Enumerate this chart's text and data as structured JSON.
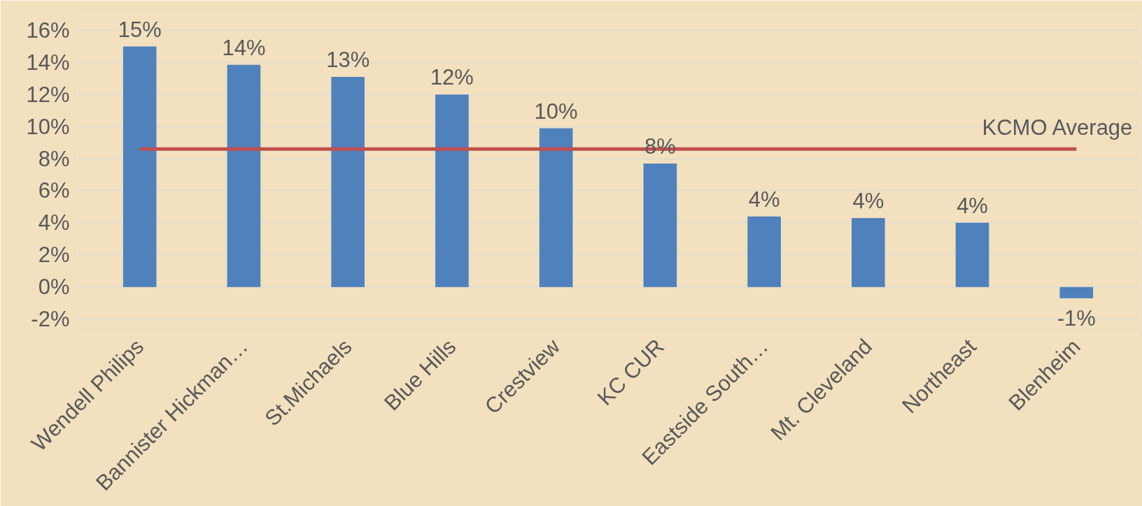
{
  "chart_data": {
    "type": "bar",
    "categories": [
      "Wendell Philips",
      "Bannister Hickman…",
      "St.Michaels",
      "Blue Hills",
      "Crestview",
      "KC CUR",
      "Eastside South…",
      "Mt. Cleveland",
      "Northeast",
      "Blenheim"
    ],
    "values": [
      15,
      13.85,
      13.1,
      12,
      9.9,
      7.7,
      4.4,
      4.3,
      4.0,
      -0.7
    ],
    "value_labels": [
      "15%",
      "14%",
      "13%",
      "12%",
      "10%",
      "8%",
      "4%",
      "4%",
      "4%",
      "-1%"
    ],
    "color": "#4f81bd",
    "ylim": [
      -3,
      17
    ],
    "yticks": [
      {
        "value": -2,
        "label": "-2%"
      },
      {
        "value": 0,
        "label": "0%"
      },
      {
        "value": 2,
        "label": "2%"
      },
      {
        "value": 4,
        "label": "4%"
      },
      {
        "value": 6,
        "label": "6%"
      },
      {
        "value": 8,
        "label": "8%"
      },
      {
        "value": 10,
        "label": "10%"
      },
      {
        "value": 12,
        "label": "12%"
      },
      {
        "value": 14,
        "label": "14%"
      },
      {
        "value": 16,
        "label": "16%"
      }
    ],
    "ref_lines": [
      {
        "axis": "y",
        "value": 8.6,
        "label": "KCMO Average",
        "color": "#c0504d"
      }
    ],
    "grid": "y"
  }
}
